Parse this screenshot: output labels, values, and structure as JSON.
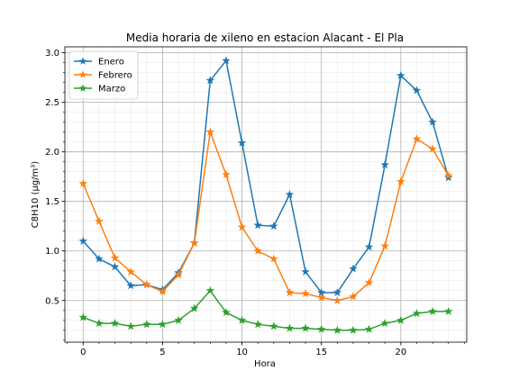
{
  "chart_data": {
    "type": "line",
    "title": "Media horaria de xileno en estacion Alacant - El Pla",
    "xlabel": "Hora",
    "ylabel": "C8H10 (µg/m³)",
    "xlim": [
      -1.15,
      24.15
    ],
    "ylim": [
      0.08,
      3.06
    ],
    "xticks": [
      0,
      5,
      10,
      15,
      20
    ],
    "yticks": [
      0.5,
      1.0,
      1.5,
      2.0,
      2.5,
      3.0
    ],
    "ytick_labels": [
      "0.5",
      "1.0",
      "1.5",
      "2.0",
      "2.5",
      "3.0"
    ],
    "x_minor_step": 1,
    "y_minor_step": 0.1,
    "grid": true,
    "legend_position": "top-left",
    "x": [
      0,
      1,
      2,
      3,
      4,
      5,
      6,
      7,
      8,
      9,
      10,
      11,
      12,
      13,
      14,
      15,
      16,
      17,
      18,
      19,
      20,
      21,
      22,
      23
    ],
    "series": [
      {
        "name": "Enero",
        "color": "#1f77b4",
        "values": [
          1.1,
          0.92,
          0.84,
          0.65,
          0.66,
          0.61,
          0.78,
          1.08,
          2.72,
          2.92,
          2.09,
          1.26,
          1.25,
          1.57,
          0.79,
          0.58,
          0.58,
          0.82,
          1.04,
          1.87,
          2.77,
          2.62,
          2.3,
          1.74
        ]
      },
      {
        "name": "Febrero",
        "color": "#ff7f0e",
        "values": [
          1.68,
          1.3,
          0.93,
          0.79,
          0.66,
          0.59,
          0.76,
          1.08,
          2.2,
          1.77,
          1.24,
          1.0,
          0.92,
          0.58,
          0.57,
          0.53,
          0.5,
          0.54,
          0.68,
          1.05,
          1.7,
          2.13,
          2.03,
          1.76
        ]
      },
      {
        "name": "Marzo",
        "color": "#2ca02c",
        "values": [
          0.33,
          0.27,
          0.27,
          0.24,
          0.26,
          0.26,
          0.3,
          0.42,
          0.6,
          0.38,
          0.3,
          0.26,
          0.24,
          0.22,
          0.22,
          0.21,
          0.2,
          0.2,
          0.21,
          0.27,
          0.3,
          0.37,
          0.39,
          0.39
        ]
      }
    ]
  }
}
